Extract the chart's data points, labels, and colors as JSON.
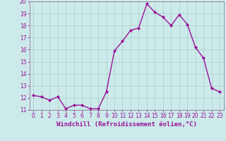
{
  "x": [
    0,
    1,
    2,
    3,
    4,
    5,
    6,
    7,
    8,
    9,
    10,
    11,
    12,
    13,
    14,
    15,
    16,
    17,
    18,
    19,
    20,
    21,
    22,
    23
  ],
  "y": [
    12.2,
    12.1,
    11.8,
    12.1,
    11.1,
    11.4,
    11.4,
    11.1,
    11.1,
    12.5,
    15.9,
    16.7,
    17.6,
    17.8,
    19.8,
    19.1,
    18.7,
    18.0,
    18.9,
    18.1,
    16.2,
    15.3,
    12.8,
    12.5
  ],
  "line_color": "#991199",
  "marker": "D",
  "marker_size": 2.2,
  "line_width": 1.0,
  "bg_color": "#cceaea",
  "grid_color": "#aacccc",
  "xlabel": "Windchill (Refroidissement éolien,°C)",
  "xlabel_color": "#991199",
  "xlabel_fontsize": 6.5,
  "tick_color": "#991199",
  "tick_fontsize": 5.5,
  "ylim": [
    11,
    20
  ],
  "xlim": [
    -0.5,
    23.5
  ],
  "yticks": [
    11,
    12,
    13,
    14,
    15,
    16,
    17,
    18,
    19,
    20
  ],
  "xticks": [
    0,
    1,
    2,
    3,
    4,
    5,
    6,
    7,
    8,
    9,
    10,
    11,
    12,
    13,
    14,
    15,
    16,
    17,
    18,
    19,
    20,
    21,
    22,
    23
  ],
  "spine_color": "#886688",
  "separator_color": "#886688"
}
